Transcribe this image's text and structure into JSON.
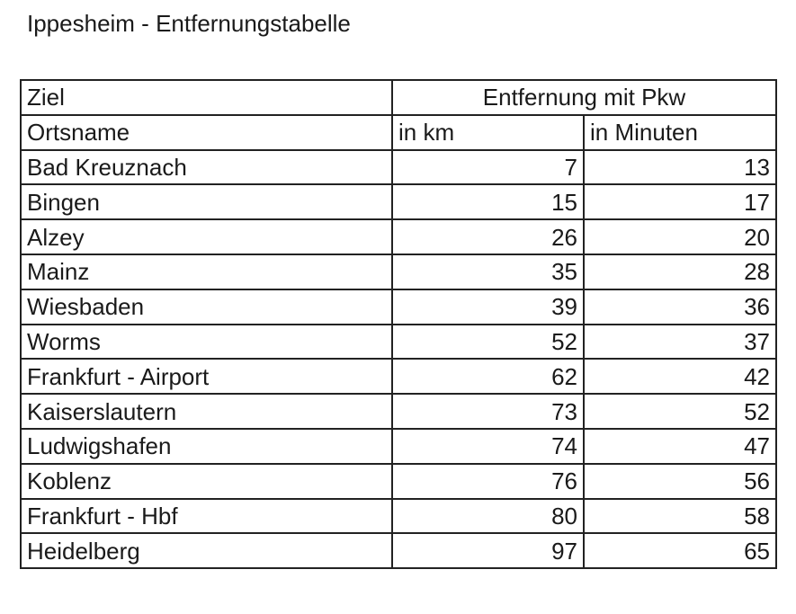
{
  "title": "Ippesheim - Entfernungstabelle",
  "table": {
    "header": [
      [
        "Ziel",
        "Entfernung mit Pkw"
      ],
      [
        "Ortsname",
        "in km",
        "in Minuten"
      ]
    ],
    "rows": [
      [
        "Bad Kreuznach",
        7,
        13
      ],
      [
        "Bingen",
        15,
        17
      ],
      [
        "Alzey",
        26,
        20
      ],
      [
        "Mainz",
        35,
        28
      ],
      [
        "Wiesbaden",
        39,
        36
      ],
      [
        "Worms",
        52,
        37
      ],
      [
        "Frankfurt - Airport",
        62,
        42
      ],
      [
        "Kaiserslautern",
        73,
        52
      ],
      [
        "Ludwigshafen",
        74,
        47
      ],
      [
        "Koblenz",
        76,
        56
      ],
      [
        "Frankfurt - Hbf",
        80,
        58
      ],
      [
        "Heidelberg",
        97,
        65
      ]
    ]
  }
}
